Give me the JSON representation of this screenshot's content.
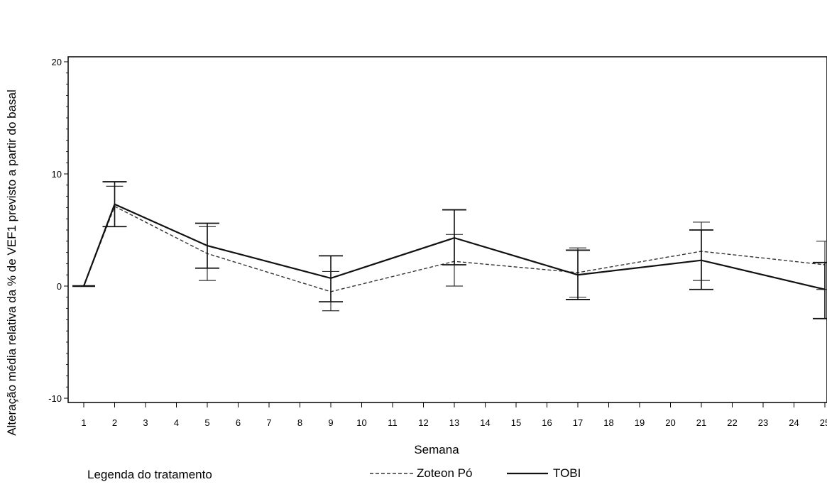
{
  "chart_data": {
    "type": "line",
    "title": "",
    "xlabel": "Semana",
    "ylabel": "Alteração média relativa da % de VEF1 previsto a partir do basal",
    "ylim": [
      -10,
      20
    ],
    "xlim": [
      1,
      25
    ],
    "yticks": [
      "-10",
      "0",
      "10",
      "20"
    ],
    "xticks": [
      "1",
      "2",
      "3",
      "4",
      "5",
      "6",
      "7",
      "8",
      "9",
      "10",
      "11",
      "12",
      "13",
      "14",
      "15",
      "16",
      "17",
      "18",
      "19",
      "20",
      "21",
      "22",
      "23",
      "24",
      "25"
    ],
    "grid": false,
    "legend": {
      "title": "Legenda do tratamento",
      "position": "bottom"
    },
    "series": [
      {
        "name": "Zoteon Pó",
        "style": "dashed",
        "color": "#333333",
        "points": [
          {
            "x": 1,
            "y": 0.0,
            "lo": null,
            "hi": null
          },
          {
            "x": 2,
            "y": 7.1,
            "lo": 5.3,
            "hi": 8.9
          },
          {
            "x": 5,
            "y": 2.9,
            "lo": 0.5,
            "hi": 5.3
          },
          {
            "x": 9,
            "y": -0.5,
            "lo": -2.2,
            "hi": 1.3
          },
          {
            "x": 13,
            "y": 2.2,
            "lo": 0.0,
            "hi": 4.6
          },
          {
            "x": 17,
            "y": 1.2,
            "lo": -1.0,
            "hi": 3.4
          },
          {
            "x": 21,
            "y": 3.1,
            "lo": 0.5,
            "hi": 5.7
          },
          {
            "x": 25,
            "y": 1.9,
            "lo": -0.3,
            "hi": 4.0
          }
        ]
      },
      {
        "name": "TOBI",
        "style": "solid",
        "color": "#111111",
        "points": [
          {
            "x": 1,
            "y": 0.0,
            "lo": null,
            "hi": null
          },
          {
            "x": 2,
            "y": 7.3,
            "lo": 5.3,
            "hi": 9.3
          },
          {
            "x": 5,
            "y": 3.6,
            "lo": 1.6,
            "hi": 5.6
          },
          {
            "x": 9,
            "y": 0.7,
            "lo": -1.4,
            "hi": 2.7
          },
          {
            "x": 13,
            "y": 4.3,
            "lo": 1.9,
            "hi": 6.8
          },
          {
            "x": 17,
            "y": 1.0,
            "lo": -1.2,
            "hi": 3.2
          },
          {
            "x": 21,
            "y": 2.3,
            "lo": -0.3,
            "hi": 5.0
          },
          {
            "x": 25,
            "y": -0.3,
            "lo": -2.9,
            "hi": 2.1
          }
        ]
      }
    ]
  }
}
